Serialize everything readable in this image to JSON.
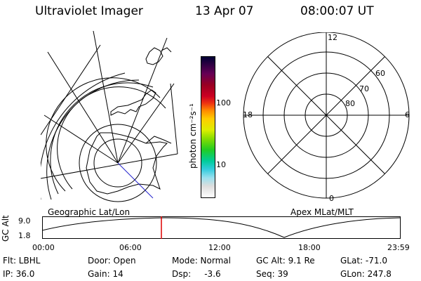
{
  "header": {
    "instrument": "Ultraviolet Imager",
    "date": "13 Apr 07",
    "time": "08:00:07 UT"
  },
  "left_map": {
    "label": "Geographic Lat/Lon"
  },
  "right_map": {
    "label": "Apex MLat/MLT",
    "mlt_labels": {
      "top": "12",
      "left": "18",
      "right": "6",
      "bottom": "0"
    },
    "lat_labels": [
      "60",
      "70",
      "80"
    ]
  },
  "colorbar": {
    "unit_label": "photon cm⁻²s⁻¹",
    "ticks": [
      "100",
      "10"
    ],
    "colors": [
      "#000033",
      "#330044",
      "#660055",
      "#990022",
      "#cc0022",
      "#ee3311",
      "#ff8800",
      "#ffcc00",
      "#ddee00",
      "#88dd00",
      "#22cc22",
      "#00cc99",
      "#33ccdd",
      "#99e0ee",
      "#dddddd",
      "#ffffff"
    ]
  },
  "timeline": {
    "ylabel": "GC Alt",
    "yticks": [
      "9.0",
      "1.8"
    ],
    "xticks": [
      "00:00",
      "06:00",
      "12:00",
      "18:00",
      "23:59"
    ],
    "current_marker_color": "#dd0000"
  },
  "status": {
    "row1": [
      "Flt: LBHL",
      "Door: Open",
      "Mode: Normal",
      "GC Alt: 9.1 Re",
      "GLat: -71.0"
    ],
    "row2": [
      "IP: 36.0",
      "Gain: 14",
      "Dsp:     -3.6",
      "Seq: 39",
      "GLon: 247.8"
    ]
  }
}
